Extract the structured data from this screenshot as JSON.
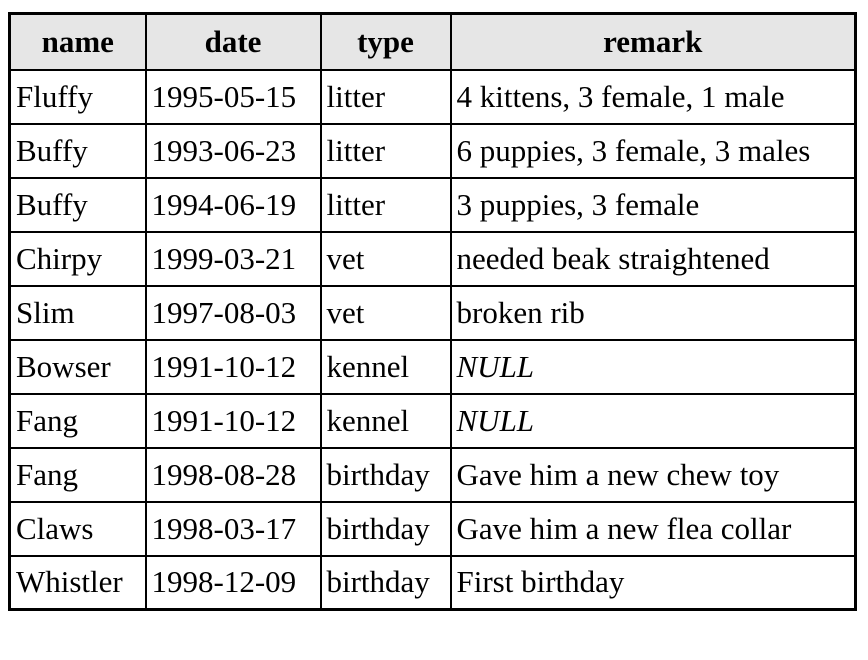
{
  "table": {
    "headers": [
      "name",
      "date",
      "type",
      "remark"
    ],
    "rows": [
      [
        "Fluffy",
        "1995-05-15",
        "litter",
        "4 kittens, 3 female, 1 male"
      ],
      [
        "Buffy",
        "1993-06-23",
        "litter",
        "6 puppies, 3 female, 3 males"
      ],
      [
        "Buffy",
        "1994-06-19",
        "litter",
        "3 puppies, 3 female"
      ],
      [
        "Chirpy",
        "1999-03-21",
        "vet",
        "needed beak straightened"
      ],
      [
        "Slim",
        "1997-08-03",
        "vet",
        "broken rib"
      ],
      [
        "Bowser",
        "1991-10-12",
        "kennel",
        "NULL"
      ],
      [
        "Fang",
        "1991-10-12",
        "kennel",
        "NULL"
      ],
      [
        "Fang",
        "1998-08-28",
        "birthday",
        "Gave him a new chew toy"
      ],
      [
        "Claws",
        "1998-03-17",
        "birthday",
        "Gave him a new flea collar"
      ],
      [
        "Whistler",
        "1998-12-09",
        "birthday",
        "First birthday"
      ]
    ]
  },
  "colors": {
    "header_background": "#e6e6e6",
    "border": "#000000"
  }
}
